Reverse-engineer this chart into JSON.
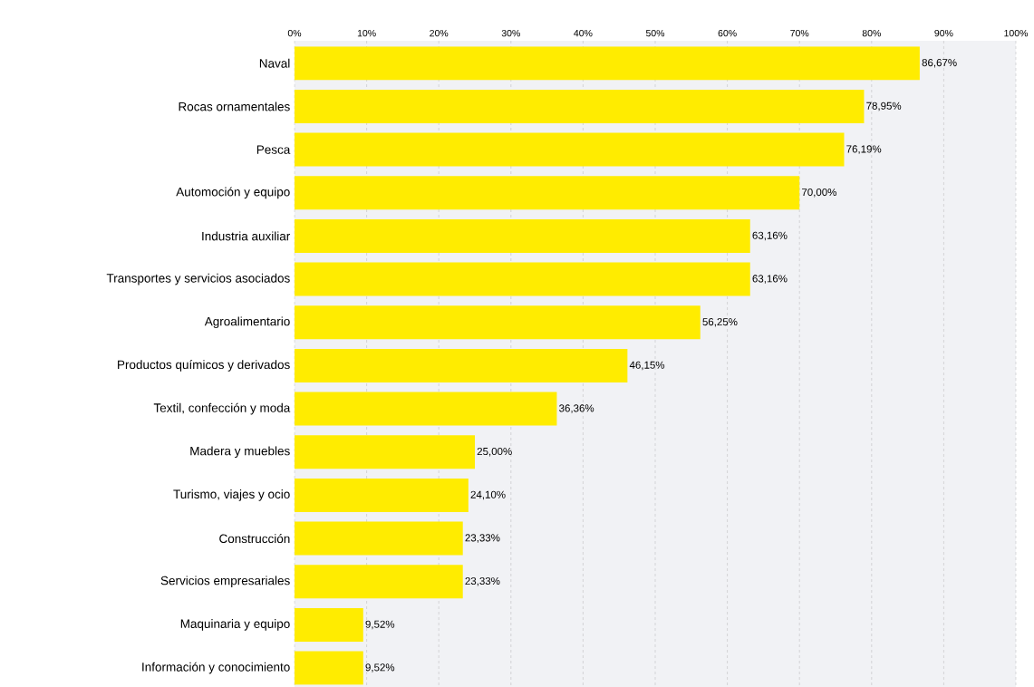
{
  "chart_data": {
    "type": "bar",
    "orientation": "horizontal",
    "color": "#ffec00",
    "categories": [
      "Naval",
      "Rocas ornamentales",
      "Pesca",
      "Automoción y equipo",
      "Industria auxiliar",
      "Transportes y servicios asociados",
      "Agroalimentario",
      "Productos químicos y derivados",
      "Textil, confección y moda",
      "Madera y muebles",
      "Turismo, viajes y ocio",
      "Construcción",
      "Servicios empresariales",
      "Maquinaria y equipo",
      "Información y conocimiento"
    ],
    "values": [
      86.67,
      78.95,
      76.19,
      70.0,
      63.16,
      63.16,
      56.25,
      46.15,
      36.36,
      25.0,
      24.1,
      23.33,
      23.33,
      9.52,
      9.52
    ],
    "value_labels": [
      "86,67%",
      "78,95%",
      "76,19%",
      "70,00%",
      "63,16%",
      "63,16%",
      "56,25%",
      "46,15%",
      "36,36%",
      "25,00%",
      "24,10%",
      "23,33%",
      "23,33%",
      "9,52%",
      "9,52%"
    ],
    "xlim": [
      0,
      100
    ],
    "xticks": [
      {
        "value": 0,
        "label": "0%"
      },
      {
        "value": 10,
        "label": "10%"
      },
      {
        "value": 20,
        "label": "20%"
      },
      {
        "value": 30,
        "label": "30%"
      },
      {
        "value": 40,
        "label": "40%"
      },
      {
        "value": 50,
        "label": "50%"
      },
      {
        "value": 60,
        "label": "60%"
      },
      {
        "value": 70,
        "label": "70%"
      },
      {
        "value": 80,
        "label": "80%"
      },
      {
        "value": 90,
        "label": "90%"
      },
      {
        "value": 100,
        "label": "100%"
      }
    ],
    "grid": "x"
  }
}
